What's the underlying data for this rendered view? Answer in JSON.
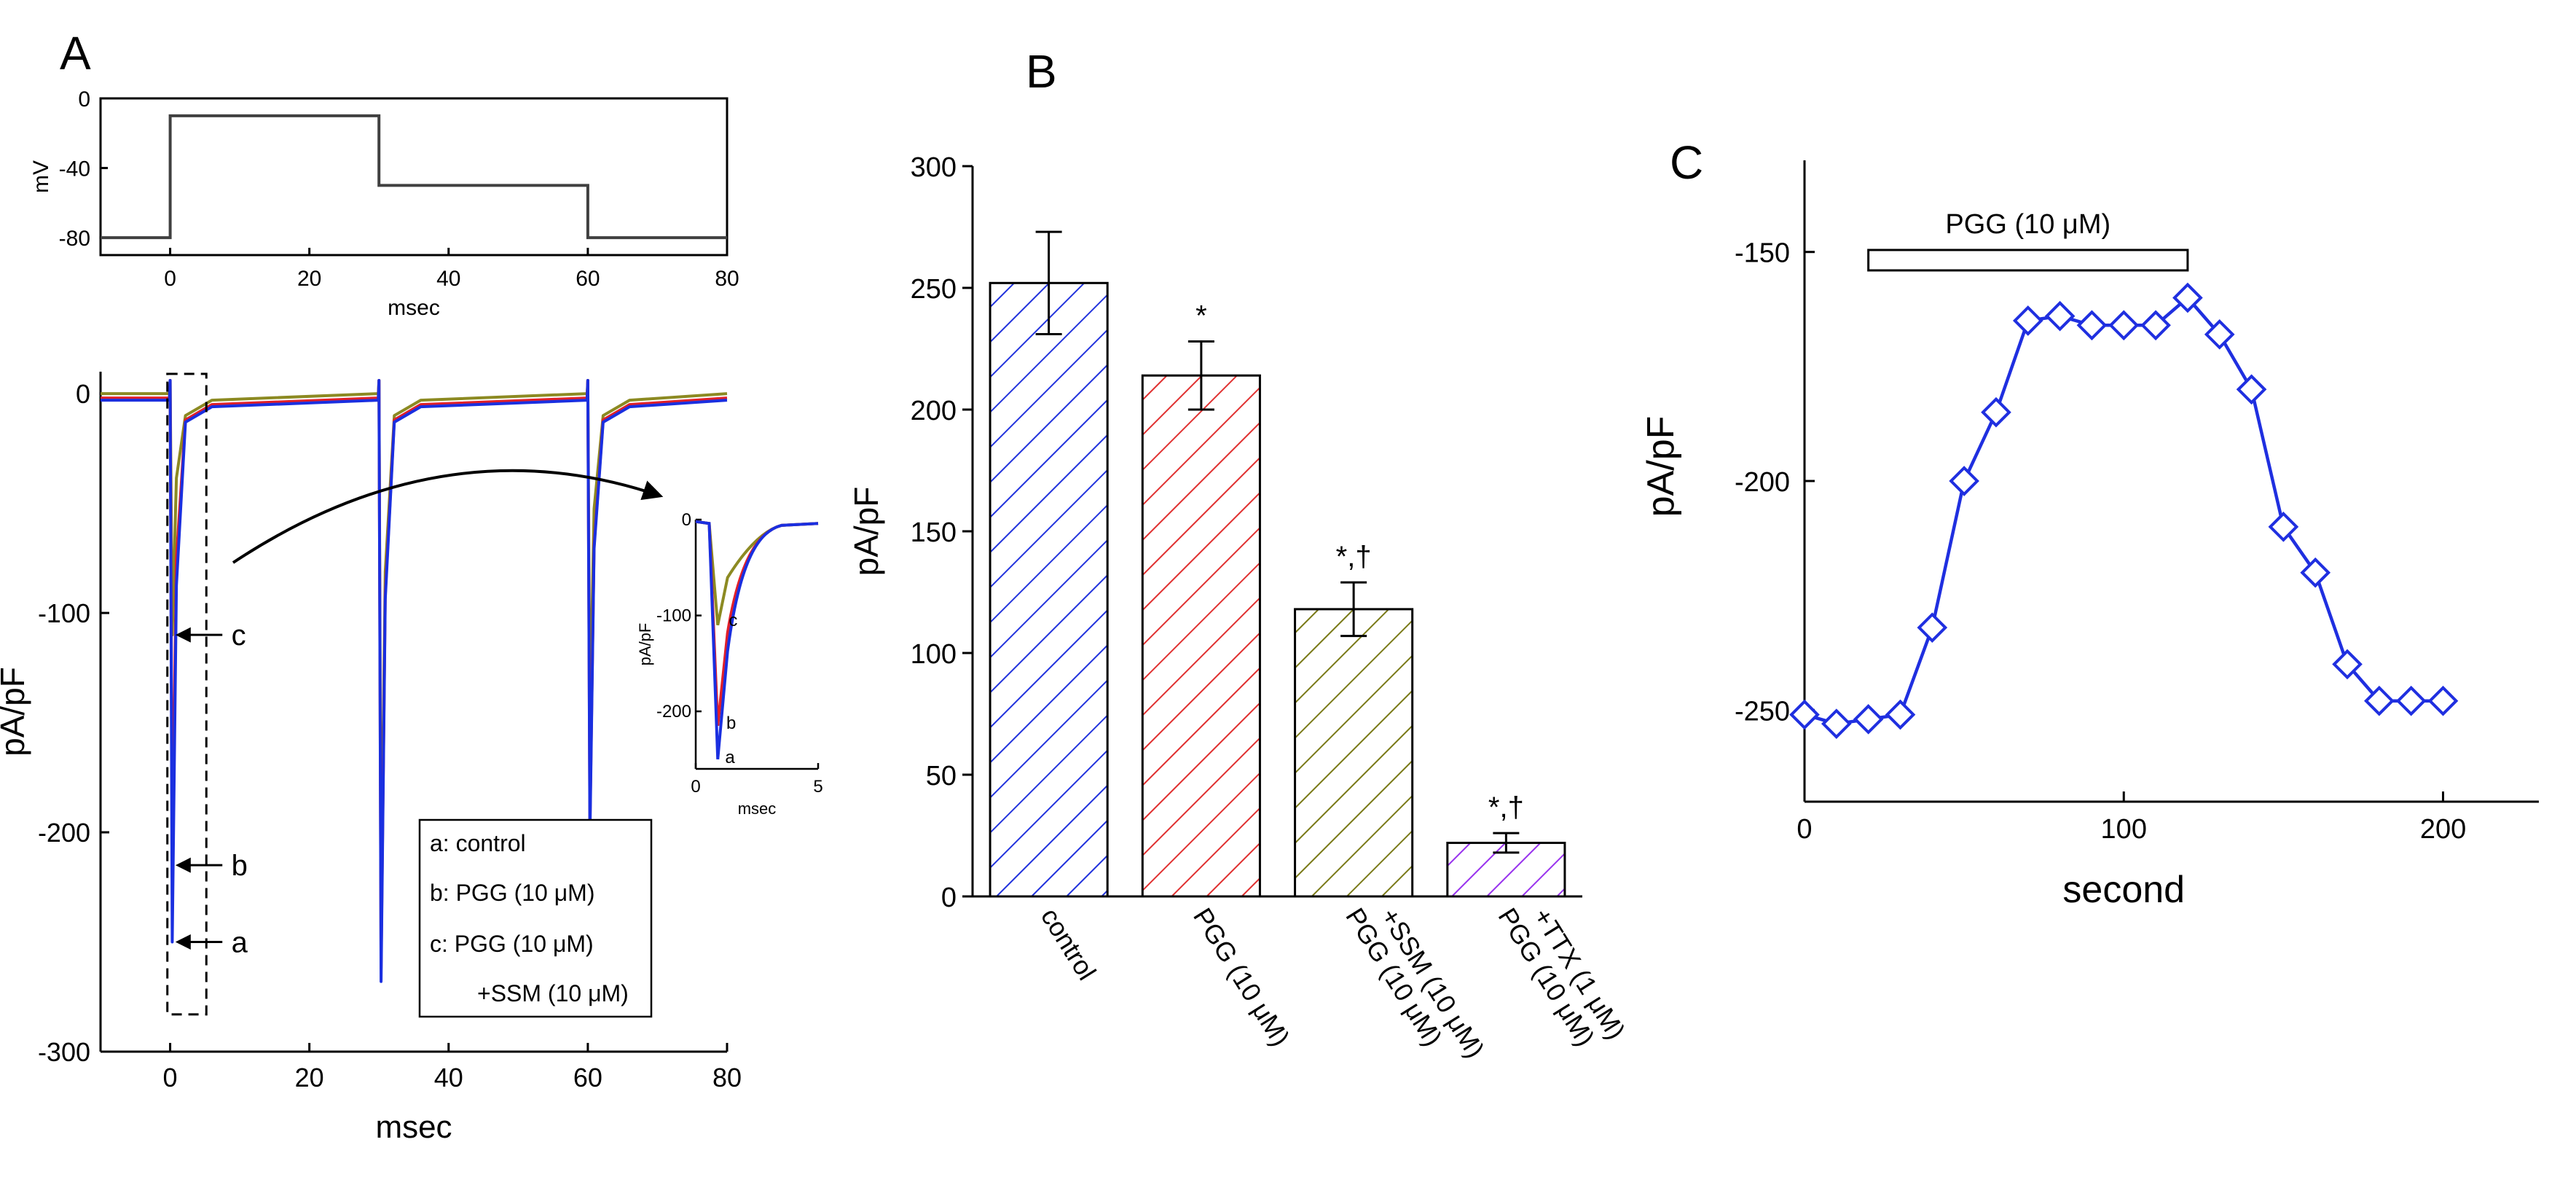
{
  "chart_data": [
    {
      "panel": "A",
      "subplot": "voltage protocol",
      "type": "line",
      "title": "",
      "xlabel": "msec",
      "ylabel": "mV",
      "xlim": [
        -10,
        80
      ],
      "ylim": [
        -90,
        0
      ],
      "xticks": [
        0,
        20,
        40,
        60,
        80
      ],
      "yticks": [
        0,
        -40,
        -80
      ],
      "grid": false,
      "series": [
        {
          "name": "protocol",
          "color": "#404040",
          "x": [
            -10,
            0,
            0,
            30,
            30,
            60,
            60,
            80
          ],
          "y": [
            -80,
            -80,
            -10,
            -10,
            -50,
            -50,
            -80,
            -80
          ]
        }
      ]
    },
    {
      "panel": "A",
      "subplot": "current traces",
      "type": "line",
      "xlabel": "msec",
      "ylabel": "pA/pF",
      "xlim": [
        -10,
        80
      ],
      "ylim": [
        -300,
        10
      ],
      "xticks": [
        0,
        20,
        40,
        60,
        80
      ],
      "yticks": [
        0,
        -100,
        -200,
        -300
      ],
      "grid": false,
      "legend_position": "bottom-right",
      "legend": [
        {
          "key": "a",
          "line1": "a: control",
          "line2": ""
        },
        {
          "key": "b",
          "line1": "b: PGG (10 μM)",
          "line2": ""
        },
        {
          "key": "c",
          "line1": "c: PGG (10 μM)",
          "line2": "+SSM (10 μM)"
        }
      ],
      "annotations": [
        "c",
        "b",
        "a"
      ],
      "series": [
        {
          "name": "a: control",
          "color": "#1a2fe0",
          "peaks": [
            -250,
            -268,
            -202
          ],
          "steady": -3
        },
        {
          "name": "b: PGG (10 μM)",
          "color": "#e0202a",
          "peaks": [
            -215,
            -262,
            -198
          ],
          "steady": -2
        },
        {
          "name": "c: PGG (10 μM) +SSM (10 μM)",
          "color": "#8c8a22",
          "peaks": [
            -110,
            -232,
            -150
          ],
          "steady": 0
        }
      ],
      "inset": {
        "xlabel": "msec",
        "ylabel": "pA/pF",
        "xlim": [
          0,
          5
        ],
        "ylim": [
          -260,
          0
        ],
        "xticks": [
          0,
          5
        ],
        "yticks": [
          0,
          -100,
          -200
        ],
        "labels": [
          "c",
          "b",
          "a"
        ]
      }
    },
    {
      "panel": "B",
      "type": "bar",
      "xlabel": "",
      "ylabel": "pA/pF",
      "ylim": [
        0,
        300
      ],
      "yticks": [
        0,
        50,
        100,
        150,
        200,
        250,
        300
      ],
      "grid": false,
      "categories": [
        "control",
        "PGG (10 μM)",
        "PGG (10 μM) +SSM (10 μM)",
        "PGG (10 μM) +TTX (1 μM)"
      ],
      "tick_labels": [
        [
          "control"
        ],
        [
          "PGG (10 μM)"
        ],
        [
          "PGG (10 μM)",
          "+SSM (10 μM)"
        ],
        [
          "PGG (10 μM)",
          "+TTX (1 μM)"
        ]
      ],
      "values": [
        252,
        214,
        118,
        22
      ],
      "errors": [
        21,
        14,
        11,
        4
      ],
      "significance": [
        "",
        "*",
        "*,†",
        "*,†"
      ],
      "colors": [
        "#2233dd",
        "#e03030",
        "#7a7a18",
        "#9933ee"
      ]
    },
    {
      "panel": "C",
      "type": "line",
      "xlabel": "second",
      "ylabel": "pA/pF",
      "xlim": [
        0,
        230
      ],
      "ylim": [
        -270,
        -130
      ],
      "xticks": [
        0,
        100,
        200
      ],
      "yticks": [
        -150,
        -200,
        -250
      ],
      "grid": false,
      "color": "#1f2fe0",
      "bar_label": "PGG (10 μM)",
      "bar_range": [
        20,
        120
      ],
      "series": [
        {
          "name": "current density",
          "x": [
            0,
            10,
            20,
            30,
            40,
            50,
            60,
            70,
            80,
            90,
            100,
            110,
            120,
            130,
            140,
            150,
            160,
            170,
            180,
            190,
            200
          ],
          "y": [
            -251,
            -253,
            -252,
            -251,
            -232,
            -200,
            -185,
            -165,
            -164,
            -166,
            -166,
            -166,
            -160,
            -168,
            -180,
            -210,
            -220,
            -240,
            -248,
            -248,
            -248
          ]
        }
      ]
    }
  ],
  "panel_letters": {
    "A": "A",
    "B": "B",
    "C": "C"
  }
}
